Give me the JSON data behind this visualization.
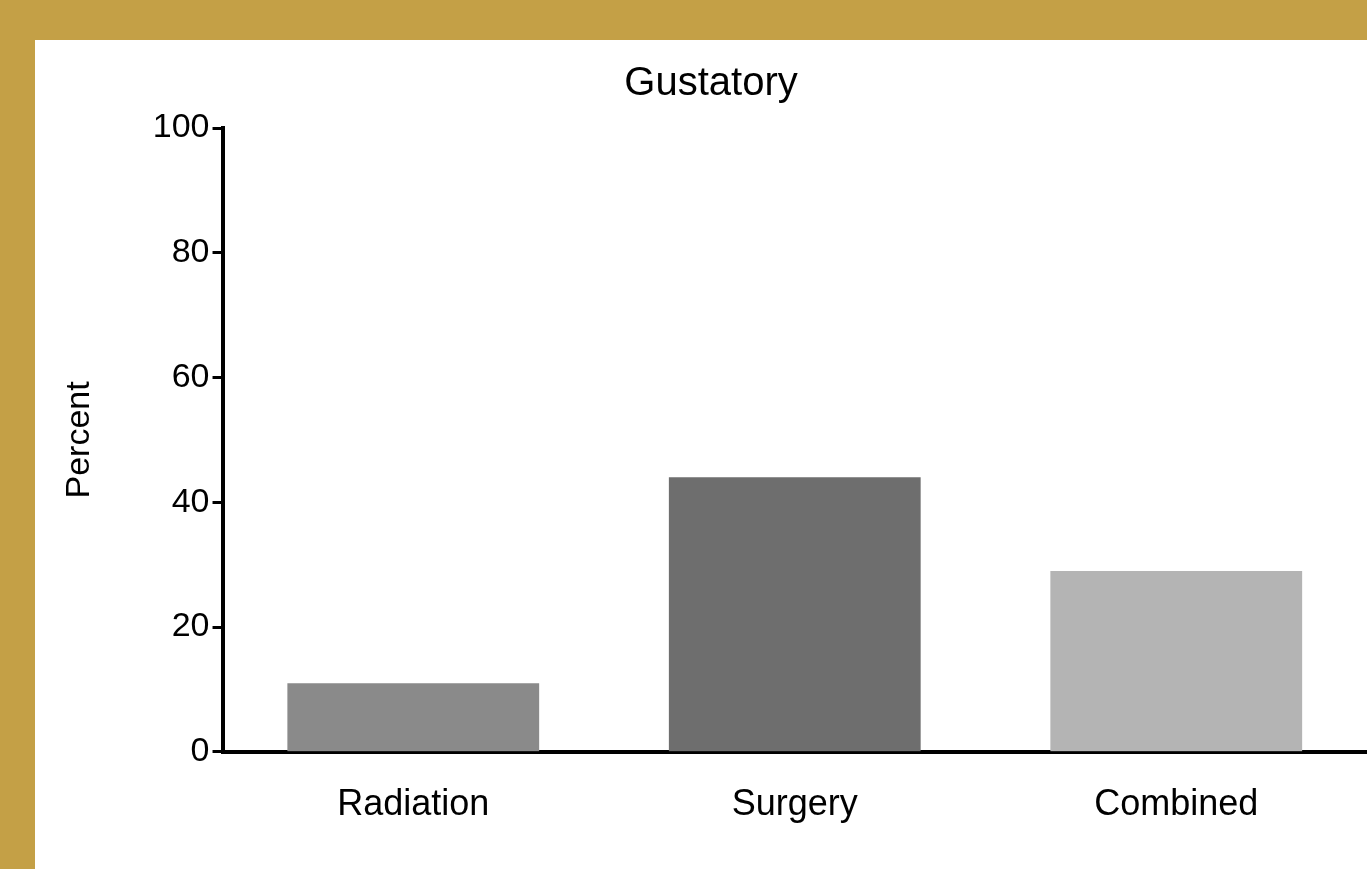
{
  "chart_data": {
    "type": "bar",
    "title": "Gustatory",
    "ylabel": "Percent",
    "categories": [
      "Radiation",
      "Surgery",
      "Combined"
    ],
    "values": [
      11,
      44,
      29
    ],
    "colors": [
      "#8a8a8a",
      "#6e6e6e",
      "#b4b4b4"
    ],
    "ylim": [
      0,
      100
    ],
    "yticks": [
      0,
      20,
      40,
      60,
      80,
      100
    ],
    "grid": false,
    "legend": false
  }
}
